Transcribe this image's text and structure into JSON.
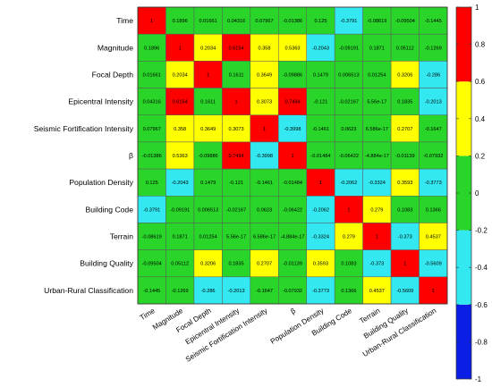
{
  "chart_data": {
    "type": "heatmap",
    "title": "",
    "xlabel": "",
    "ylabel": "",
    "labels": [
      "Time",
      "Magnitude",
      "Focal Depth",
      "Epicentral Intensity",
      "Seismic Fortification Intensity",
      "β",
      "Population Density",
      "Building Code",
      "Terrain",
      "Building Quality",
      "Urban-Rural Classification"
    ],
    "display": [
      [
        "1",
        "0.1896",
        "0.01661",
        "0.04316",
        "0.07967",
        "-0.01386",
        "0.125",
        "-0.3791",
        "-0.08619",
        "-0.09504",
        "-0.1445"
      ],
      [
        "0.1896",
        "1",
        "0.2034",
        "0.6154",
        "0.358",
        "0.5363",
        "-0.2043",
        "-0.09191",
        "0.1871",
        "0.05112",
        "-0.1269"
      ],
      [
        "0.01661",
        "0.2034",
        "1",
        "0.1611",
        "0.3649",
        "-0.09886",
        "0.1479",
        "0.006513",
        "0.01254",
        "0.3206",
        "-0.286"
      ],
      [
        "0.04316",
        "0.6154",
        "0.1611",
        "1",
        "0.3073",
        "0.7494",
        "-0.121",
        "-0.02167",
        "5.56e-17",
        "0.1835",
        "-0.2013"
      ],
      [
        "0.07967",
        "0.358",
        "0.3649",
        "0.3073",
        "1",
        "-0.3998",
        "-0.1461",
        "0.0623",
        "6.586e-17",
        "0.2707",
        "-0.1647"
      ],
      [
        "-0.01386",
        "0.5363",
        "-0.09886",
        "0.7494",
        "-0.3998",
        "1",
        "-0.01484",
        "-0.06422",
        "-4.884e-17",
        "-0.01139",
        "-0.07932"
      ],
      [
        "0.125",
        "-0.2043",
        "0.1479",
        "-0.121",
        "-0.1461",
        "-0.01484",
        "1",
        "-0.2062",
        "-0.3324",
        "0.3593",
        "-0.3773"
      ],
      [
        "-0.3791",
        "-0.09191",
        "0.006513",
        "-0.02167",
        "0.0623",
        "-0.06422",
        "-0.2062",
        "1",
        "0.279",
        "0.1083",
        "0.1366"
      ],
      [
        "-0.08619",
        "0.1871",
        "0.01254",
        "5.56e-17",
        "6.586e-17",
        "-4.884e-17",
        "-0.3324",
        "0.279",
        "1",
        "-0.373",
        "0.4537"
      ],
      [
        "-0.09504",
        "0.05112",
        "0.3206",
        "0.1835",
        "0.2707",
        "-0.01139",
        "0.3593",
        "0.1083",
        "-0.373",
        "1",
        "-0.5609"
      ],
      [
        "-0.1445",
        "-0.1269",
        "-0.286",
        "-0.2013",
        "-0.1647",
        "-0.07932",
        "-0.3773",
        "0.1366",
        "0.4537",
        "-0.5609",
        "1"
      ]
    ],
    "colorbar": {
      "ticks": [
        "1",
        "0.8",
        "0.6",
        "0.4",
        "0.2",
        "0",
        "-0.2",
        "-0.4",
        "-0.6",
        "-0.8",
        "-1"
      ],
      "range": [
        -1,
        1
      ],
      "bands": [
        {
          "from": -1.0,
          "to": -0.6,
          "color": "#0a1ee6"
        },
        {
          "from": -0.6,
          "to": -0.2,
          "color": "#33e8f0"
        },
        {
          "from": -0.2,
          "to": 0.2,
          "color": "#28d528"
        },
        {
          "from": 0.2,
          "to": 0.6,
          "color": "#ffff00"
        },
        {
          "from": 0.6,
          "to": 1.0,
          "color": "#ff0000"
        }
      ]
    },
    "grid": true,
    "legend": "right"
  }
}
